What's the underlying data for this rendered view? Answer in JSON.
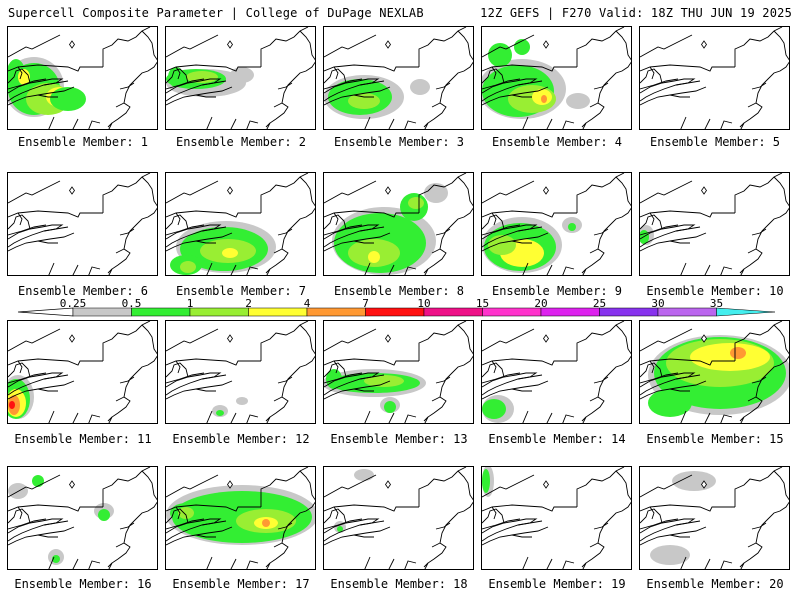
{
  "header": {
    "title": "Supercell Composite Parameter | College of DuPage NEXLAB",
    "run_info": "12Z GEFS | F270 Valid: 18Z THU JUN 19 2025"
  },
  "panels": [
    {
      "label": "Ensemble Member: 1"
    },
    {
      "label": "Ensemble Member: 2"
    },
    {
      "label": "Ensemble Member: 3"
    },
    {
      "label": "Ensemble Member: 4"
    },
    {
      "label": "Ensemble Member: 5"
    },
    {
      "label": "Ensemble Member: 6"
    },
    {
      "label": "Ensemble Member: 7"
    },
    {
      "label": "Ensemble Member: 8"
    },
    {
      "label": "Ensemble Member: 9"
    },
    {
      "label": "Ensemble Member: 10"
    },
    {
      "label": "Ensemble Member: 11"
    },
    {
      "label": "Ensemble Member: 12"
    },
    {
      "label": "Ensemble Member: 13"
    },
    {
      "label": "Ensemble Member: 14"
    },
    {
      "label": "Ensemble Member: 15"
    },
    {
      "label": "Ensemble Member: 16"
    },
    {
      "label": "Ensemble Member: 17"
    },
    {
      "label": "Ensemble Member: 18"
    },
    {
      "label": "Ensemble Member: 19"
    },
    {
      "label": "Ensemble Member: 20"
    }
  ],
  "colorbar": {
    "levels": [
      "0.25",
      "0.5",
      "1",
      "2",
      "4",
      "7",
      "10",
      "15",
      "20",
      "25",
      "30",
      "35"
    ],
    "colors": [
      "#c8c8c8",
      "#33ee33",
      "#99ee33",
      "#ffff33",
      "#ff9933",
      "#ff1111",
      "#ee1188",
      "#ff33cc",
      "#dd22ee",
      "#8833ee",
      "#bb66ee",
      "#44eeee"
    ]
  }
}
